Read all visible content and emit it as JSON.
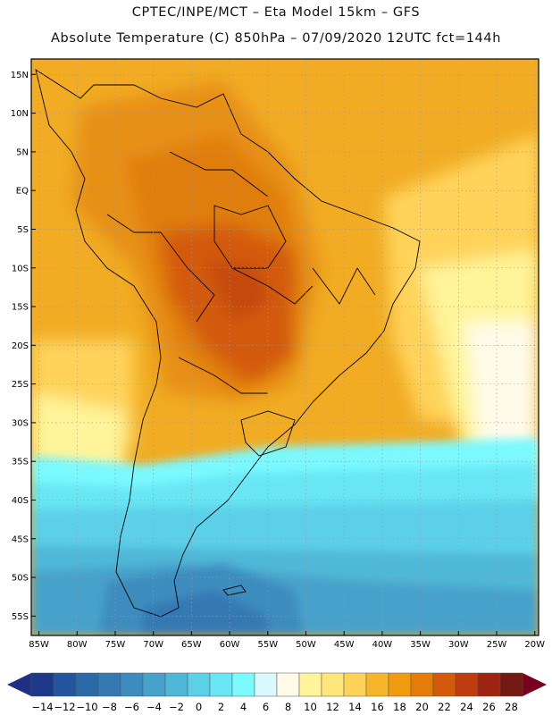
{
  "header": {
    "line1": "CPTEC/INPE/MCT –  Eta Model 15km – GFS",
    "line2": "Absolute Temperature (C) 850hPa – 07/09/2020 12UTC fct=144h"
  },
  "map": {
    "lat_labels": [
      "15N",
      "10N",
      "5N",
      "EQ",
      "5S",
      "10S",
      "15S",
      "20S",
      "25S",
      "30S",
      "35S",
      "40S",
      "45S",
      "50S",
      "55S"
    ],
    "lat_values": [
      15,
      10,
      5,
      0,
      -5,
      -10,
      -15,
      -20,
      -25,
      -30,
      -35,
      -40,
      -45,
      -50,
      -55
    ],
    "lon_labels": [
      "85W",
      "80W",
      "75W",
      "70W",
      "65W",
      "60W",
      "55W",
      "50W",
      "45W",
      "40W",
      "35W",
      "30W",
      "25W",
      "20W"
    ],
    "lon_values": [
      -85,
      -80,
      -75,
      -70,
      -65,
      -60,
      -55,
      -50,
      -45,
      -40,
      -35,
      -30,
      -25,
      -20
    ],
    "lon_range": [
      -86,
      -19.5
    ],
    "lat_range": [
      -57.5,
      17
    ]
  },
  "colorbar": {
    "labels": [
      "-14",
      "-12",
      "-10",
      "-8",
      "-6",
      "-4",
      "-2",
      "0",
      "2",
      "4",
      "6",
      "8",
      "10",
      "12",
      "14",
      "16",
      "18",
      "20",
      "22",
      "24",
      "26",
      "28"
    ],
    "colors": [
      "#1d3a8a",
      "#23549e",
      "#2b6aa8",
      "#3479b3",
      "#3d8cbe",
      "#46a2cb",
      "#4fb8d8",
      "#5bd0e8",
      "#68e6f4",
      "#7af9ff",
      "#d9f8ff",
      "#fffbe8",
      "#fff49a",
      "#ffe57a",
      "#ffd35a",
      "#f7b52a",
      "#ef9c0e",
      "#e47c08",
      "#d35a0a",
      "#bf3c0e",
      "#9c2410",
      "#741812"
    ],
    "min_color": "#1f2f86",
    "max_color": "#7a0020"
  }
}
